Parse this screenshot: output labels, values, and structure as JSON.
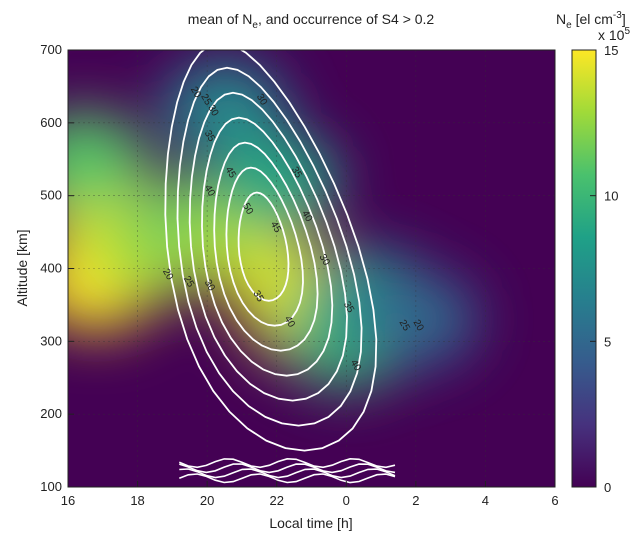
{
  "chart_data": {
    "type": "heatmap",
    "title": "mean of N",
    "title_sub": "e",
    "title_rest": ", and occurrence of S4 > 0.2",
    "xlabel": "Local time [h]",
    "ylabel": "Altitude [km]",
    "x_ticks": [
      "16",
      "18",
      "20",
      "22",
      "0",
      "2",
      "4",
      "6"
    ],
    "y_ticks": [
      "100",
      "200",
      "300",
      "400",
      "500",
      "600",
      "700"
    ],
    "x_range_hours": [
      16,
      30
    ],
    "ylim": [
      100,
      700
    ],
    "grid": true,
    "colorbar": {
      "label_main": "N",
      "label_sub": "e",
      "label_unit": " [el cm",
      "label_sup": "-3",
      "label_close": "]",
      "multiplier_base": "x 10",
      "multiplier_exp": "5",
      "ticks": [
        "0",
        "5",
        "10",
        "15"
      ],
      "range": [
        0,
        15
      ]
    },
    "colormap": [
      "#440154",
      "#46327e",
      "#365c8d",
      "#277f8e",
      "#1fa187",
      "#4ac16d",
      "#a0da39",
      "#fde725"
    ],
    "heatmap_peaks": [
      {
        "x": 16.8,
        "y": 380,
        "value": 15
      },
      {
        "x": 17.0,
        "y": 480,
        "value": 14
      },
      {
        "x": 16.5,
        "y": 550,
        "value": 11
      },
      {
        "x": 18.5,
        "y": 420,
        "value": 13
      },
      {
        "x": 19.8,
        "y": 470,
        "value": 11
      },
      {
        "x": 21.0,
        "y": 450,
        "value": 13
      },
      {
        "x": 22.2,
        "y": 380,
        "value": 14
      },
      {
        "x": 23.0,
        "y": 330,
        "value": 14
      },
      {
        "x": 24.0,
        "y": 300,
        "value": 10
      },
      {
        "x": 24.6,
        "y": 360,
        "value": 8
      },
      {
        "x": 26.0,
        "y": 330,
        "value": 5
      },
      {
        "x": 20.5,
        "y": 620,
        "value": 7
      },
      {
        "x": 22.0,
        "y": 520,
        "value": 9
      }
    ],
    "contour_levels": [
      20,
      25,
      30,
      35,
      40,
      45,
      50
    ],
    "contours": [
      {
        "level": 20,
        "labels": [
          {
            "x": 19.6,
            "y": 640,
            "text": "20"
          },
          {
            "x": 18.8,
            "y": 390,
            "text": "20"
          },
          {
            "x": 26.0,
            "y": 320,
            "text": "20"
          }
        ]
      },
      {
        "level": 25,
        "labels": [
          {
            "x": 19.9,
            "y": 630,
            "text": "25"
          },
          {
            "x": 19.4,
            "y": 380,
            "text": "25"
          },
          {
            "x": 25.6,
            "y": 320,
            "text": "25"
          }
        ]
      },
      {
        "level": 30,
        "labels": [
          {
            "x": 20.1,
            "y": 615,
            "text": "30"
          },
          {
            "x": 20.0,
            "y": 375,
            "text": "30"
          },
          {
            "x": 23.3,
            "y": 410,
            "text": "30"
          },
          {
            "x": 21.5,
            "y": 630,
            "text": "30"
          }
        ]
      },
      {
        "level": 35,
        "labels": [
          {
            "x": 20.0,
            "y": 580,
            "text": "35"
          },
          {
            "x": 21.4,
            "y": 360,
            "text": "35"
          },
          {
            "x": 22.5,
            "y": 530,
            "text": "35"
          },
          {
            "x": 24.0,
            "y": 345,
            "text": "35"
          }
        ]
      },
      {
        "level": 40,
        "labels": [
          {
            "x": 20.0,
            "y": 505,
            "text": "40"
          },
          {
            "x": 22.3,
            "y": 325,
            "text": "40"
          },
          {
            "x": 22.8,
            "y": 470,
            "text": "40"
          },
          {
            "x": 24.2,
            "y": 265,
            "text": "40"
          }
        ]
      },
      {
        "level": 45,
        "labels": [
          {
            "x": 20.6,
            "y": 530,
            "text": "45"
          },
          {
            "x": 21.9,
            "y": 455,
            "text": "45"
          }
        ]
      },
      {
        "level": 50,
        "labels": [
          {
            "x": 21.1,
            "y": 480,
            "text": "50"
          }
        ]
      }
    ]
  }
}
